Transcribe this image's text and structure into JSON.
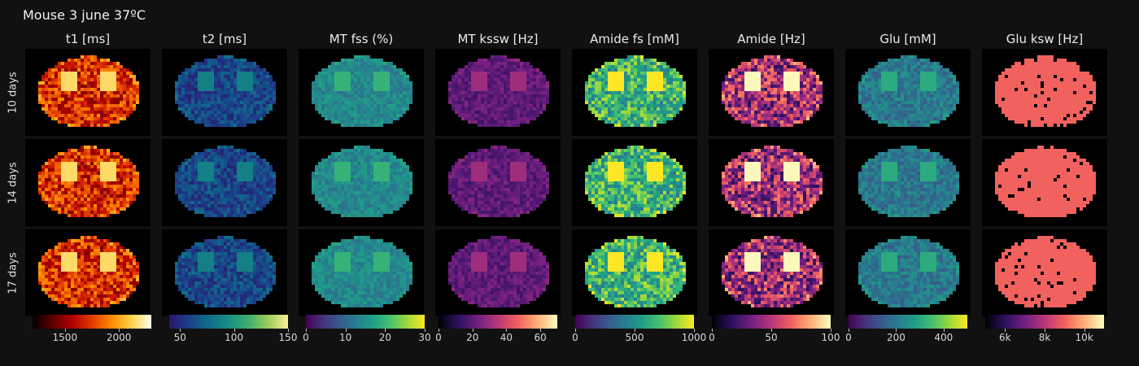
{
  "title": "Mouse 3 june 37ºC",
  "chart_data": {
    "type": "heatmap",
    "title": "Mouse 3 june 37ºC",
    "rows": [
      "10 days",
      "14 days",
      "17 days"
    ],
    "maps": [
      {
        "name": "t1 [ms]",
        "colorscale": "hot",
        "range": [
          1200,
          2300
        ],
        "ticks": [
          {
            "v": 1500,
            "label": "1500"
          },
          {
            "v": 2000,
            "label": "2000"
          }
        ],
        "stats": {
          "median": 1700,
          "spread": 250
        }
      },
      {
        "name": "t2 [ms]",
        "colorscale": "haline",
        "range": [
          40,
          150
        ],
        "ticks": [
          {
            "v": 50,
            "label": "50"
          },
          {
            "v": 100,
            "label": "100"
          },
          {
            "v": 150,
            "label": "150"
          }
        ],
        "stats": {
          "median": 60,
          "spread": 15
        }
      },
      {
        "name": "MT fss (%)",
        "colorscale": "viridis",
        "range": [
          0,
          30
        ],
        "ticks": [
          {
            "v": 0,
            "label": "0"
          },
          {
            "v": 10,
            "label": "10"
          },
          {
            "v": 20,
            "label": "20"
          },
          {
            "v": 30,
            "label": "30"
          }
        ],
        "stats": {
          "median": 14,
          "spread": 3
        }
      },
      {
        "name": "MT kssw [Hz]",
        "colorscale": "magma",
        "range": [
          0,
          70
        ],
        "ticks": [
          {
            "v": 0,
            "label": "0"
          },
          {
            "v": 20,
            "label": "20"
          },
          {
            "v": 40,
            "label": "40"
          },
          {
            "v": 60,
            "label": "60"
          }
        ],
        "stats": {
          "median": 20,
          "spread": 6
        }
      },
      {
        "name": "Amide fs [mM]",
        "colorscale": "viridis",
        "range": [
          0,
          1000
        ],
        "ticks": [
          {
            "v": 0,
            "label": "0"
          },
          {
            "v": 500,
            "label": "500"
          },
          {
            "v": 1000,
            "label": "1000"
          }
        ],
        "stats": {
          "median": 650,
          "spread": 250
        }
      },
      {
        "name": "Amide [Hz]",
        "colorscale": "magma",
        "range": [
          0,
          100
        ],
        "ticks": [
          {
            "v": 0,
            "label": "0"
          },
          {
            "v": 50,
            "label": "50"
          },
          {
            "v": 100,
            "label": "100"
          }
        ],
        "stats": {
          "median": 45,
          "spread": 30
        }
      },
      {
        "name": "Glu [mM]",
        "colorscale": "viridis",
        "range": [
          0,
          500
        ],
        "ticks": [
          {
            "v": 0,
            "label": "0"
          },
          {
            "v": 200,
            "label": "200"
          },
          {
            "v": 400,
            "label": "400"
          }
        ],
        "stats": {
          "median": 200,
          "spread": 60
        }
      },
      {
        "name": "Glu ksw [Hz]",
        "colorscale": "magma",
        "range": [
          5000,
          11000
        ],
        "ticks": [
          {
            "v": 6000,
            "label": "6k"
          },
          {
            "v": 8000,
            "label": "8k"
          },
          {
            "v": 10000,
            "label": "10k"
          }
        ],
        "stats": {
          "median": 9000,
          "spread": 0
        }
      }
    ],
    "grid": false,
    "colorbar_position": "bottom"
  }
}
